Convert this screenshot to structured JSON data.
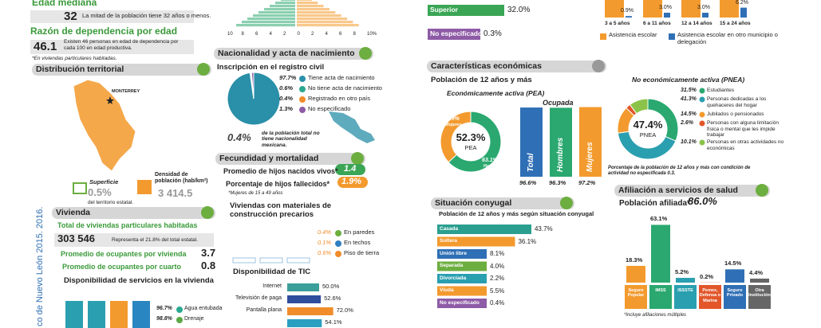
{
  "demografia": {
    "edad_mediana": {
      "title": "Edad mediana",
      "value": "32",
      "note": "La mitad de la población tiene 32 años o menos."
    },
    "dependencia": {
      "title": "Razón de dependencia por edad",
      "value": "46.1",
      "note": "Existen 46 personas en edad de dependencia por cada 100 en edad productiva."
    },
    "footnote": "*En viviendas particulares habitadas.",
    "pyramid_axis": [
      "10",
      "8",
      "6",
      "4",
      "2",
      "0",
      "2",
      "4",
      "6",
      "8",
      "10%"
    ]
  },
  "territorio": {
    "title": "Distribución territorial",
    "city": "MONTERREY",
    "superficie": {
      "label": "Superficie",
      "value": "0.5%",
      "note": "del territorio estatal."
    },
    "densidad": {
      "label": "Densidad de población (hab/km²)",
      "value": "3 414.5"
    }
  },
  "vivienda": {
    "title": "Vivienda",
    "total": {
      "label": "Total de viviendas particulares habitadas",
      "value": "303 546",
      "note": "Representa el 21.8% del total estatal."
    },
    "ocupantes_vivienda": {
      "label": "Promedio de ocupantes por vivienda",
      "value": "3.7"
    },
    "ocupantes_cuarto": {
      "label": "Promedio de ocupantes por cuarto",
      "value": "0.8"
    },
    "servicios": {
      "title": "Disponibilidad de servicios en la vivienda",
      "items": [
        {
          "value": "96.7%",
          "label": "Agua entubada",
          "color": "#2aa88f"
        },
        {
          "value": "98.8%",
          "label": "Drenaje",
          "color": "#5aa845"
        }
      ]
    },
    "precarios": {
      "title": "Viviendas con materiales de construcción precarios",
      "items": [
        {
          "value": "0.4%",
          "label": "En paredes",
          "color": "#6cae3f"
        },
        {
          "value": "0.1%",
          "label": "En techos",
          "color": "#2f7fc1"
        },
        {
          "value": "0.6%",
          "label": "Piso de tierra",
          "color": "#f08c2a"
        }
      ]
    },
    "tic": {
      "title": "Disponibilidad de TIC",
      "categories": [
        "Internet",
        "Televisión de paga",
        "Pantalla plana",
        null
      ],
      "values": [
        50.0,
        52.6,
        72.0,
        54.1
      ],
      "value_labels": [
        "50.0%",
        "52.6%",
        "72.0%",
        "54.1%"
      ],
      "colors": [
        "#3a9e9a",
        "#2d4e9c",
        "#f08c2a",
        "#2aa0c0"
      ]
    }
  },
  "source": "co de Nuevo León 2015. 2016.",
  "nacionalidad": {
    "title": "Nacionalidad y acta de nacimiento",
    "subtitle": "Inscripción en el registro civil",
    "pie": {
      "values": [
        97.7,
        0.6,
        0.4,
        1.3
      ],
      "value_labels": [
        "97.7%",
        "0.6%",
        "0.4%",
        "1.3%"
      ],
      "labels": [
        "Tiene acta de nacimiento",
        "No tiene acta de nacimiento",
        "Registrado en otro país",
        "No especificado"
      ],
      "colors": [
        "#2a8fa8",
        "#2aa88f",
        "#f08c2a",
        "#8e5ba6"
      ]
    },
    "extranjeros": {
      "value": "0.4%",
      "note": "de la población total no tiene nacionalidad mexicana."
    }
  },
  "fecundidad": {
    "title": "Fecundidad y mortalidad",
    "hijos_vivos": {
      "label": "Promedio de hijos nacidos vivos*",
      "value": "1.4"
    },
    "hijos_fallecidos": {
      "label": "Porcentaje de hijos fallecidos*",
      "value": "1.9%"
    },
    "footnote": "*Mujeres de 15 a 49 años"
  },
  "educacion": {
    "categories": [
      "Superior",
      "No especificado"
    ],
    "values": [
      32.0,
      0.3
    ],
    "value_labels": [
      "32.0%",
      "0.3%"
    ],
    "colors": [
      "#3aa655",
      "#8e5ba6"
    ]
  },
  "asistencia": {
    "categories": [
      "3 a 5 años",
      "6 a 11 años",
      "12 a 14 años",
      "15 a 24 años"
    ],
    "values": [
      0.9,
      3.0,
      3.0,
      6.2
    ],
    "value_labels": [
      "0.9%",
      "3.0%",
      "3.0%",
      "6.2%"
    ],
    "legend": [
      "Asistencia escolar",
      "Asistencia escolar en otro municipio o delegación"
    ],
    "colors": [
      "#f39a2e",
      "#2f6fb5"
    ]
  },
  "economia": {
    "title": "Características económicas",
    "subtitle": "Población de 12 años y más",
    "pea": {
      "title": "Económicamente activa (PEA)",
      "value": "52.3%",
      "label": "PEA",
      "sexo": {
        "values": [
          36.9,
          63.1
        ],
        "value_labels": [
          "36.9%",
          "63.1%"
        ],
        "labels": [
          "Mujeres",
          "Hombres"
        ],
        "colors": [
          "#f39a2e",
          "#2aa86f"
        ]
      }
    },
    "ocupada": {
      "title": "Ocupada",
      "categories": [
        "Total",
        "Hombres",
        "Mujeres"
      ],
      "values": [
        96.6,
        96.3,
        97.2
      ],
      "value_labels": [
        "96.6%",
        "96.3%",
        "97.2%"
      ],
      "colors": [
        "#2f6fb5",
        "#2aa86f",
        "#f39a2e"
      ]
    },
    "pnea": {
      "title": "No económicamente activa (PNEA)",
      "value": "47.4%",
      "label": "PNEA",
      "values": [
        31.5,
        41.3,
        14.5,
        2.6,
        10.1
      ],
      "value_labels": [
        "31.5%",
        "41.3%",
        "14.5%",
        "2.6%",
        "10.1%"
      ],
      "labels": [
        "Estudiantes",
        "Personas dedicadas a los quehaceres del hogar",
        "Jubilados o pensionados",
        "Personas con alguna limitación física o mental que les impide trabajar",
        "Personas en otras actividades no económicas"
      ],
      "colors": [
        "#2aa86f",
        "#2a9fb0",
        "#f39a2e",
        "#e2562a",
        "#8bc34a"
      ]
    },
    "note": "Porcentaje de la población de 12 años y más con condición de actividad no especificada 0.3."
  },
  "conyugal": {
    "title": "Situación conyugal",
    "subtitle": "Población de 12 años y más según situación conyugal",
    "categories": [
      "Casada",
      "Soltera",
      "Unión libre",
      "Separada",
      "Divorciada",
      "Viuda",
      "No especificado"
    ],
    "values": [
      43.7,
      36.1,
      8.1,
      4.0,
      2.2,
      5.5,
      0.4
    ],
    "value_labels": [
      "43.7%",
      "36.1%",
      "8.1%",
      "4.0%",
      "2.2%",
      "5.5%",
      "0.4%"
    ],
    "colors": [
      "#2a9f8f",
      "#f39a2e",
      "#2f6fb5",
      "#6cae3f",
      "#2a9fb0",
      "#f39a2e",
      "#8e5ba6"
    ]
  },
  "salud": {
    "title": "Afiliación a servicios de salud",
    "afiliada": {
      "label": "Población afiliada*",
      "value": "86.0%"
    },
    "categories": [
      "Seguro Popular",
      "IMSS",
      "ISSSTE",
      "Pemex, Defensa o Marina",
      "Seguro Privado",
      "Otra Institución"
    ],
    "values": [
      18.3,
      63.1,
      5.2,
      0.2,
      14.5,
      4.4
    ],
    "value_labels": [
      "18.3%",
      "63.1%",
      "5.2%",
      "0.2%",
      "14.5%",
      "4.4%"
    ],
    "colors": [
      "#f39a2e",
      "#2aa86f",
      "#2a9fb0",
      "#e2562a",
      "#2f6fb5",
      "#666666"
    ],
    "footnote": "*Incluye afiliaciones múltiples"
  }
}
